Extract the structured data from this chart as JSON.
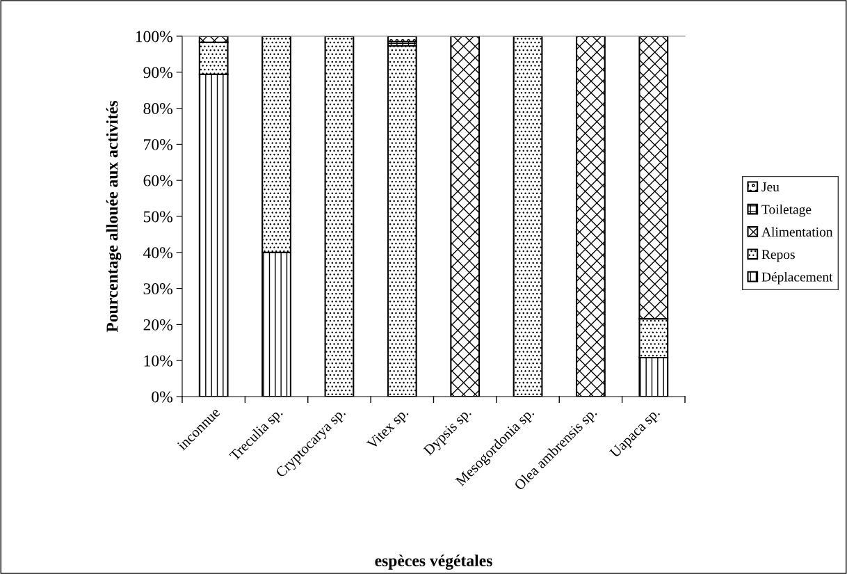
{
  "chart_data": {
    "type": "bar",
    "stacked": true,
    "xlabel": "espèces végétales",
    "ylabel": "Pourcentage allouée aux activités",
    "categories": [
      "inconnue",
      "Treculia sp.",
      "Cryptocarya sp.",
      "Vitex sp.",
      "Dypsis sp.",
      "Mesogordonia sp.",
      "Olea ambrensis sp.",
      "Uapaca sp."
    ],
    "series": [
      {
        "name": "Déplacement",
        "color": "#000000",
        "values": [
          89.4,
          40,
          0,
          0,
          0,
          0,
          0,
          10.8
        ]
      },
      {
        "name": "Repos",
        "color": "#000000",
        "values": [
          8.9,
          60,
          100,
          97.3,
          0,
          100,
          0,
          10.8
        ]
      },
      {
        "name": "Alimentation",
        "color": "#000000",
        "values": [
          1.7,
          0,
          0,
          0,
          100,
          0,
          100,
          78.4
        ]
      },
      {
        "name": "Toiletage",
        "color": "#000000",
        "values": [
          0,
          0,
          0,
          1.2,
          0,
          0,
          0,
          0
        ]
      },
      {
        "name": "Jeu",
        "color": "#000000",
        "values": [
          0,
          0,
          0,
          1.5,
          0,
          0,
          0,
          0
        ]
      }
    ],
    "ylim": [
      0,
      100
    ],
    "yticks": [
      {
        "value": 0,
        "label": "0%"
      },
      {
        "value": 10,
        "label": "10%"
      },
      {
        "value": 20,
        "label": "20%"
      },
      {
        "value": 30,
        "label": "30%"
      },
      {
        "value": 40,
        "label": "40%"
      },
      {
        "value": 50,
        "label": "50%"
      },
      {
        "value": 60,
        "label": "60%"
      },
      {
        "value": 70,
        "label": "70%"
      },
      {
        "value": 80,
        "label": "80%"
      },
      {
        "value": 90,
        "label": "90%"
      },
      {
        "value": 100,
        "label": "100%"
      }
    ],
    "legend": "right",
    "grid": false
  }
}
